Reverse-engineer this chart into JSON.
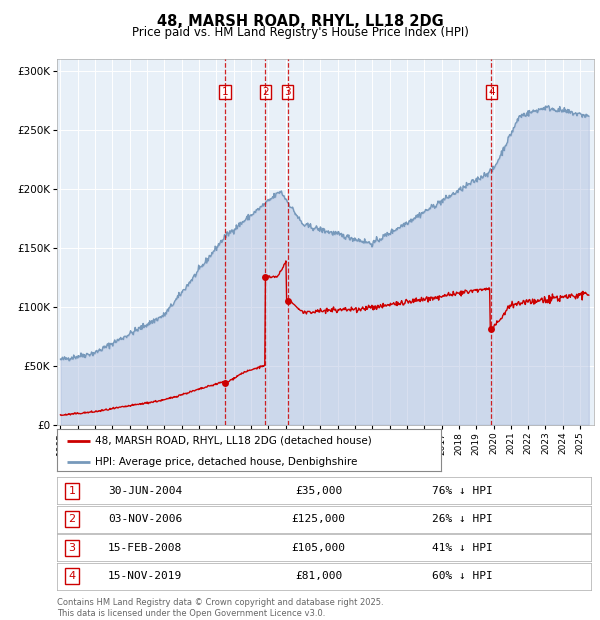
{
  "title": "48, MARSH ROAD, RHYL, LL18 2DG",
  "subtitle": "Price paid vs. HM Land Registry's House Price Index (HPI)",
  "legend_house": "48, MARSH ROAD, RHYL, LL18 2DG (detached house)",
  "legend_hpi": "HPI: Average price, detached house, Denbighshire",
  "footer": "Contains HM Land Registry data © Crown copyright and database right 2025.\nThis data is licensed under the Open Government Licence v3.0.",
  "transactions": [
    {
      "num": 1,
      "date": "30-JUN-2004",
      "price": "£35,000",
      "pct": "76% ↓ HPI",
      "year_x": 2004.5
    },
    {
      "num": 2,
      "date": "03-NOV-2006",
      "price": "£125,000",
      "pct": "26% ↓ HPI",
      "year_x": 2006.83
    },
    {
      "num": 3,
      "date": "15-FEB-2008",
      "price": "£105,000",
      "pct": "41% ↓ HPI",
      "year_x": 2008.12
    },
    {
      "num": 4,
      "date": "15-NOV-2019",
      "price": "£81,000",
      "pct": "60% ↓ HPI",
      "year_x": 2019.87
    }
  ],
  "house_color": "#cc0000",
  "hpi_color": "#7799bb",
  "hpi_fill_color": "#aabbdd",
  "vline_color": "#cc0000",
  "plot_bg": "#e8f0f8",
  "ylim": [
    0,
    310000
  ],
  "yticks": [
    0,
    50000,
    100000,
    150000,
    200000,
    250000,
    300000
  ],
  "xlim_start": 1994.8,
  "xlim_end": 2025.8
}
